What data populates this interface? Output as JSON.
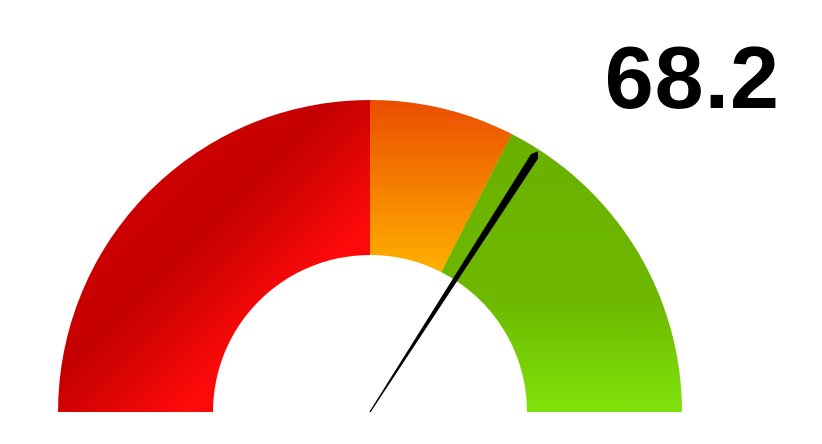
{
  "chart_data": {
    "type": "gauge",
    "title": "",
    "value": 68.2,
    "value_label": "68.2",
    "min": 0,
    "max": 100,
    "bands": [
      {
        "from": 0,
        "to": 50,
        "color": "#e50000",
        "color_dark": "#c00000"
      },
      {
        "from": 50,
        "to": 65,
        "color": "#f26a00",
        "color_light": "#ffa800"
      },
      {
        "from": 65,
        "to": 100,
        "color": "#6eb800",
        "color_light": "#7fe000"
      }
    ],
    "needle_color": "#000000"
  }
}
